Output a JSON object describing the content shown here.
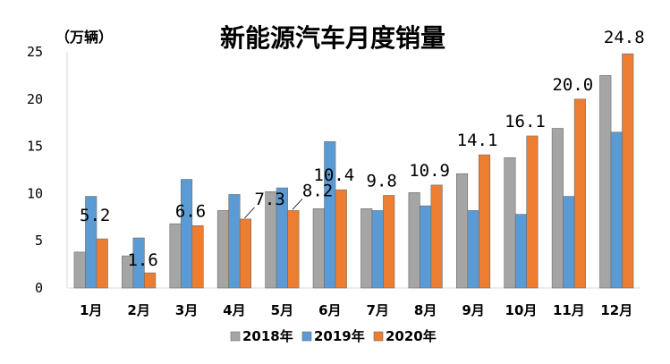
{
  "chart_data": {
    "type": "bar",
    "title": "新能源汽车月度销量",
    "unit_label": "（万辆）",
    "categories": [
      "1月",
      "2月",
      "3月",
      "4月",
      "5月",
      "6月",
      "7月",
      "8月",
      "9月",
      "10月",
      "11月",
      "12月"
    ],
    "series": [
      {
        "name": "2018年",
        "color": "#a5a5a5",
        "values": [
          3.8,
          3.4,
          6.8,
          8.2,
          10.2,
          8.4,
          8.4,
          10.1,
          12.1,
          13.8,
          16.9,
          22.5
        ]
      },
      {
        "name": "2019年",
        "color": "#5b9bd5",
        "values": [
          9.7,
          5.3,
          11.5,
          9.9,
          10.6,
          15.5,
          8.2,
          8.7,
          8.2,
          7.8,
          9.7,
          16.5
        ]
      },
      {
        "name": "2020年",
        "color": "#ed7d31",
        "values": [
          5.2,
          1.6,
          6.6,
          7.3,
          8.2,
          10.4,
          9.8,
          10.9,
          14.1,
          16.1,
          20.0,
          24.8
        ]
      }
    ],
    "data_labels": [
      "5.2",
      "1.6",
      "6.6",
      "7.3",
      "8.2",
      "10.4",
      "9.8",
      "10.9",
      "14.1",
      "16.1",
      "20.0",
      "24.8"
    ],
    "data_labels_series": "2020年",
    "yticks": [
      "0",
      "5",
      "10",
      "15",
      "20",
      "25"
    ],
    "ylim": [
      0,
      25
    ],
    "grid": false,
    "legend_position": "bottom"
  }
}
